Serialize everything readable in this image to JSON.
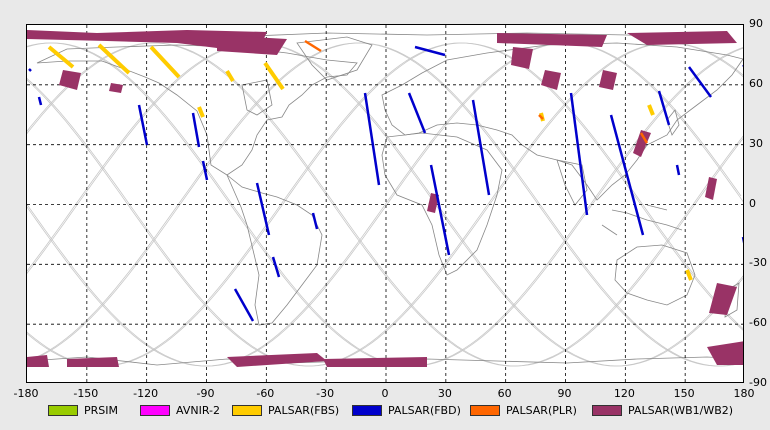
{
  "map": {
    "x_ticks": [
      "-180",
      "-150",
      "-120",
      "-90",
      "-60",
      "-30",
      "0",
      "30",
      "60",
      "90",
      "120",
      "150",
      "180"
    ],
    "y_ticks": [
      "90",
      "60",
      "30",
      "0",
      "-30",
      "-60",
      "-90"
    ],
    "colors": {
      "grid": "#000000",
      "orbit": "#c8c8c8",
      "coast": "#888888",
      "background": "#ffffff"
    }
  },
  "legend": {
    "items": [
      {
        "label": "PRSIM",
        "color": "#99cc00"
      },
      {
        "label": "AVNIR-2",
        "color": "#ff00ff"
      },
      {
        "label": "PALSAR(FBS)",
        "color": "#ffcc00"
      },
      {
        "label": "PALSAR(FBD)",
        "color": "#0000cc"
      },
      {
        "label": "PALSAR(PLR)",
        "color": "#ff6600"
      },
      {
        "label": "PALSAR(WB1/WB2)",
        "color": "#993366"
      }
    ]
  }
}
